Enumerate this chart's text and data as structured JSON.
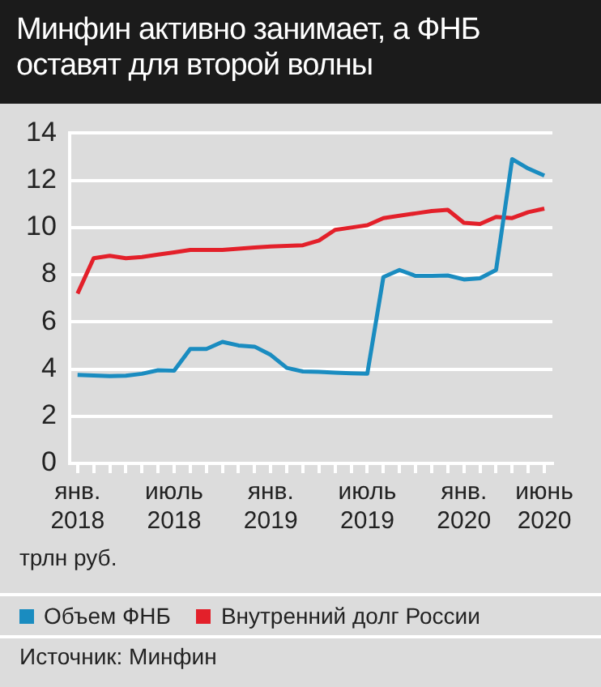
{
  "chart_data": {
    "type": "line",
    "title": "Минфин активно занимает, а ФНБ оставят для второй волны",
    "ylabel": "трлн руб.",
    "categories": [
      "янв. 2018",
      null,
      null,
      null,
      null,
      null,
      "июль 2018",
      null,
      null,
      null,
      null,
      null,
      "янв. 2019",
      null,
      null,
      null,
      null,
      null,
      "июль 2019",
      null,
      null,
      null,
      null,
      null,
      "янв. 2020",
      null,
      null,
      null,
      null,
      "июнь 2020"
    ],
    "series": [
      {
        "name": "Объем ФНБ",
        "color": "#1a8cc0",
        "values": [
          3.75,
          3.73,
          3.7,
          3.72,
          3.8,
          3.95,
          3.93,
          4.85,
          4.85,
          5.15,
          5.0,
          4.95,
          4.6,
          4.05,
          3.9,
          3.88,
          3.85,
          3.82,
          3.8,
          7.9,
          8.2,
          7.95,
          7.95,
          7.97,
          7.8,
          7.85,
          8.2,
          12.9,
          12.5,
          12.2
        ]
      },
      {
        "name": "Внутренний долг России",
        "color": "#e3202a",
        "values": [
          7.2,
          8.7,
          8.8,
          8.7,
          8.75,
          8.85,
          8.95,
          9.05,
          9.05,
          9.05,
          9.1,
          9.15,
          9.2,
          9.22,
          9.25,
          9.45,
          9.9,
          10.0,
          10.1,
          10.4,
          10.5,
          10.6,
          10.7,
          10.75,
          10.2,
          10.15,
          10.45,
          10.4,
          10.65,
          10.8
        ]
      }
    ],
    "ylim": [
      0,
      14
    ],
    "yticks": [
      0,
      2,
      4,
      6,
      8,
      10,
      12,
      14
    ],
    "grid": "y",
    "legend": "bottom",
    "marker": "none",
    "line_style": "solid",
    "annotations": [
      "Источник: Минфин"
    ]
  }
}
